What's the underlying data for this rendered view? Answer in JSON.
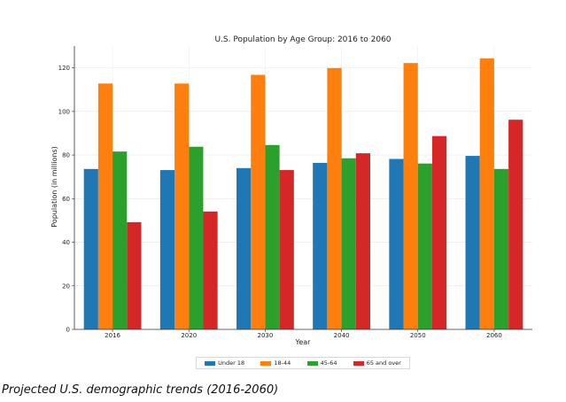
{
  "caption": "Projected U.S. demographic trends (2016-2060)",
  "chart_data": {
    "type": "bar",
    "title": "U.S. Population by Age Group: 2016 to 2060",
    "xlabel": "Year",
    "ylabel": "Population (in millions)",
    "categories": [
      "2016",
      "2020",
      "2030",
      "2040",
      "2050",
      "2060"
    ],
    "ylim": [
      0,
      130
    ],
    "yticks": [
      0,
      20,
      40,
      60,
      80,
      100,
      120
    ],
    "grid": true,
    "legend_position": "bottom-center",
    "series": [
      {
        "name": "Under 18",
        "color": "#1f77b4",
        "values": [
          73.6,
          73.1,
          74.0,
          76.4,
          78.2,
          79.6
        ]
      },
      {
        "name": "18-44",
        "color": "#ff7f0e",
        "values": [
          112.8,
          112.8,
          116.8,
          119.9,
          122.2,
          124.3
        ]
      },
      {
        "name": "45-64",
        "color": "#2ca02c",
        "values": [
          81.6,
          83.8,
          84.6,
          78.5,
          76.1,
          73.6
        ]
      },
      {
        "name": "65 and over",
        "color": "#d62728",
        "values": [
          49.2,
          54.1,
          73.1,
          80.8,
          88.7,
          96.2
        ]
      }
    ]
  }
}
